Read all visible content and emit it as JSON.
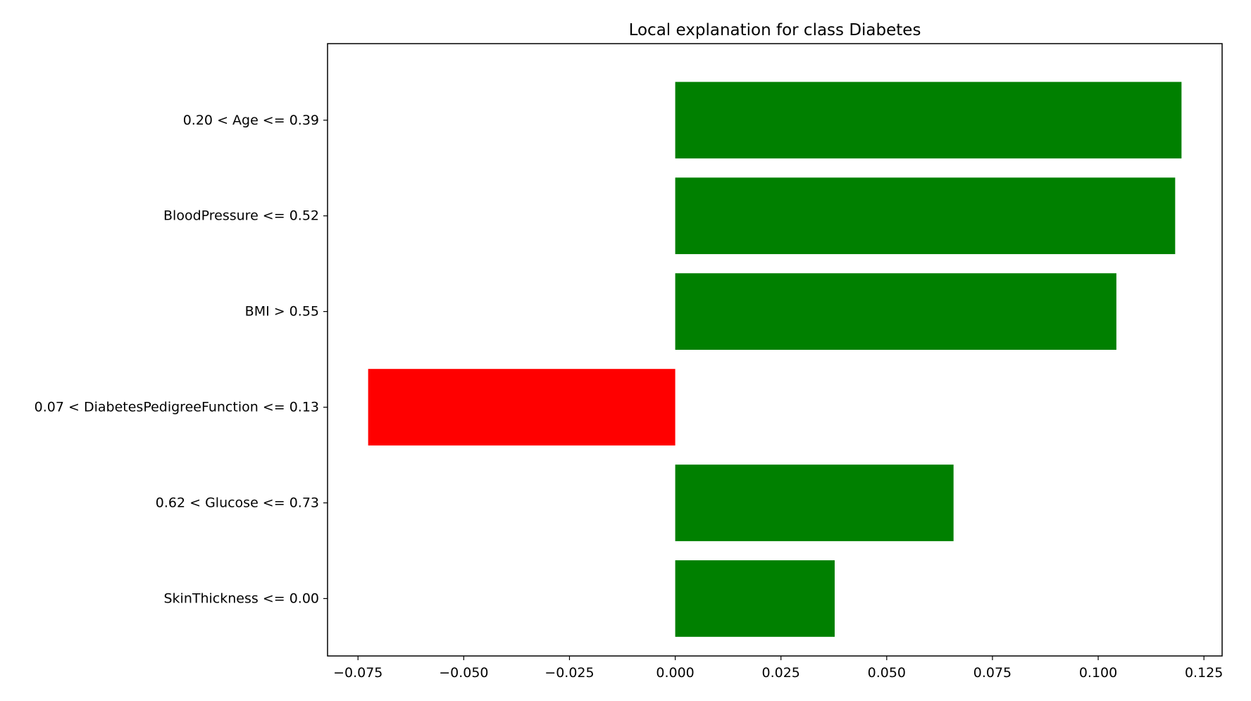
{
  "chart_data": {
    "type": "bar",
    "orientation": "horizontal",
    "title": "Local explanation for class Diabetes",
    "xlabel": "",
    "ylabel": "",
    "categories": [
      "0.20 < Age <= 0.39",
      "BloodPressure <= 0.52",
      "BMI > 0.55",
      "0.07 < DiabetesPedigreeFunction <= 0.13",
      "0.62 < Glucose <= 0.73",
      "SkinThickness <= 0.00"
    ],
    "values": [
      0.1197,
      0.1182,
      0.1043,
      -0.0726,
      0.0658,
      0.0377
    ],
    "xlim": [
      -0.0822,
      0.1293
    ],
    "xticks": [
      -0.075,
      -0.05,
      -0.025,
      0.0,
      0.025,
      0.05,
      0.075,
      0.1,
      0.125
    ],
    "xtick_labels": [
      "−0.075",
      "−0.050",
      "−0.025",
      "0.000",
      "0.025",
      "0.050",
      "0.075",
      "0.100",
      "0.125"
    ],
    "colors": {
      "positive": "#008000",
      "negative": "#ff0000",
      "axis": "#000000",
      "background": "#ffffff"
    },
    "grid": false,
    "legend": "none"
  }
}
